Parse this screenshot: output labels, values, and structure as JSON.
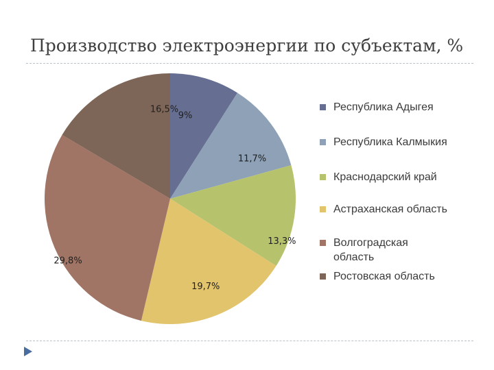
{
  "chart_data": {
    "type": "pie",
    "title": "Производство электроэнергии по субъектам, %",
    "start_angle_deg": 0,
    "direction": "clockwise",
    "legend_position": "right",
    "slices": [
      {
        "name": "Республика Адыгея",
        "value": 9,
        "label": "9%",
        "color": "#666e92"
      },
      {
        "name": "Республика Калмыкия",
        "value": 11.7,
        "label": "11,7%",
        "color": "#8ea1b6"
      },
      {
        "name": "Краснодарский край",
        "value": 13.3,
        "label": "13,3%",
        "color": "#b6c36c"
      },
      {
        "name": "Астраханская область",
        "value": 19.7,
        "label": "19,7%",
        "color": "#e2c46d"
      },
      {
        "name": "Волгоградская область",
        "value": 29.8,
        "label": "29,8%",
        "color": "#a17565"
      },
      {
        "name": "Ростовская область",
        "value": 16.5,
        "label": "16,5%",
        "color": "#7d6557"
      }
    ]
  },
  "legend_marker_color": "#4a6da0"
}
